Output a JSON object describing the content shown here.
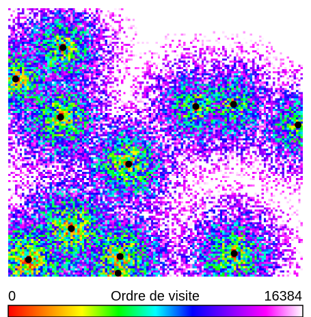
{
  "chart_data": {
    "type": "heatmap",
    "grid_size": 128,
    "colorbar": {
      "label": "Ordre de visite",
      "min_label": "0",
      "max_label": "16384",
      "range": [
        0,
        16384
      ],
      "colors": [
        "#ff0000",
        "#ff8000",
        "#ffff00",
        "#00ff00",
        "#00ffff",
        "#0000ff",
        "#8000ff",
        "#ff00ff",
        "#ffffff"
      ]
    },
    "seed_points": [
      {
        "x": 0.186,
        "y": 0.147
      },
      {
        "x": 0.025,
        "y": 0.264
      },
      {
        "x": 0.178,
        "y": 0.406
      },
      {
        "x": 0.637,
        "y": 0.366
      },
      {
        "x": 0.765,
        "y": 0.358
      },
      {
        "x": 0.984,
        "y": 0.435
      },
      {
        "x": 0.409,
        "y": 0.581
      },
      {
        "x": 0.214,
        "y": 0.821
      },
      {
        "x": 0.069,
        "y": 0.937
      },
      {
        "x": 0.38,
        "y": 0.925
      },
      {
        "x": 0.373,
        "y": 1.005
      },
      {
        "x": 0.767,
        "y": 0.914
      }
    ]
  }
}
